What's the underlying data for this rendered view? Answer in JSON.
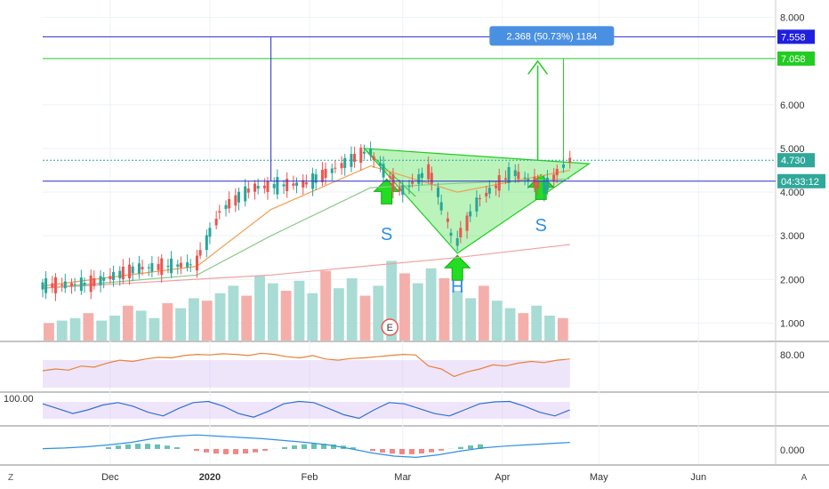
{
  "chart_data": [
    {
      "type": "candlestick",
      "x_ticks": [
        "Dec",
        "2020",
        "Feb",
        "Mar",
        "Apr",
        "May",
        "Jun"
      ],
      "y_ticks": [
        "1.000",
        "2.000",
        "3.000",
        "4.000",
        "5.000",
        "6.000",
        "8.000"
      ],
      "ylim": [
        0.6,
        8.4
      ],
      "price_path": [
        {
          "date": "2019-11-10",
          "price": 1.85
        },
        {
          "date": "2019-11-25",
          "price": 1.9
        },
        {
          "date": "2019-12-10",
          "price": 2.25
        },
        {
          "date": "2019-12-28",
          "price": 2.35
        },
        {
          "date": "2020-01-05",
          "price": 3.6
        },
        {
          "date": "2020-01-15",
          "price": 4.1
        },
        {
          "date": "2020-02-01",
          "price": 4.2
        },
        {
          "date": "2020-02-20",
          "price": 4.95
        },
        {
          "date": "2020-03-01",
          "price": 4.0
        },
        {
          "date": "2020-03-10",
          "price": 4.5
        },
        {
          "date": "2020-03-18",
          "price": 2.8
        },
        {
          "date": "2020-03-25",
          "price": 3.8
        },
        {
          "date": "2020-04-05",
          "price": 4.45
        },
        {
          "date": "2020-04-15",
          "price": 4.1
        },
        {
          "date": "2020-04-22",
          "price": 4.73
        }
      ],
      "moving_averages": [
        {
          "color": "#f0a050",
          "values": [
            [
              "2019-11-10",
              1.85
            ],
            [
              "2019-12-28",
              2.3
            ],
            [
              "2020-01-20",
              3.6
            ],
            [
              "2020-02-20",
              4.6
            ],
            [
              "2020-03-18",
              4.0
            ],
            [
              "2020-04-22",
              4.5
            ]
          ]
        },
        {
          "color": "#8bc98b",
          "values": [
            [
              "2019-11-10",
              1.8
            ],
            [
              "2019-12-28",
              2.1
            ],
            [
              "2020-01-20",
              3.0
            ],
            [
              "2020-02-20",
              4.1
            ],
            [
              "2020-03-18",
              4.2
            ],
            [
              "2020-04-22",
              4.3
            ]
          ]
        },
        {
          "color": "#f0a0a0",
          "values": [
            [
              "2019-11-10",
              1.8
            ],
            [
              "2020-01-20",
              2.1
            ],
            [
              "2020-03-18",
              2.5
            ],
            [
              "2020-04-22",
              2.8
            ]
          ]
        }
      ],
      "horizontal_lines": [
        {
          "price": 7.558,
          "color": "#2c2cd0"
        },
        {
          "price": 7.058,
          "color": "#22cc22"
        },
        {
          "price": 4.25,
          "color": "#2c2cd0"
        },
        {
          "price": 4.73,
          "color": "#2fa89a",
          "style": "dotted"
        }
      ],
      "price_tags": [
        {
          "label": "7.558",
          "color": "#1f1fe0"
        },
        {
          "label": "7.058",
          "color": "#22cc22"
        },
        {
          "label": "4.730",
          "color": "#2fa89a"
        },
        {
          "label": "04:33:12",
          "color": "#2fa89a"
        }
      ],
      "measure_label": "2.368 (50.73%) 1184",
      "pattern_labels": [
        "S",
        "H",
        "S"
      ],
      "earnings_marker": "E",
      "volume_values": [
        0.7,
        0.8,
        0.9,
        1.1,
        0.8,
        1.0,
        1.4,
        1.2,
        0.9,
        1.5,
        1.3,
        1.7,
        1.6,
        1.9,
        2.2,
        1.8,
        2.6,
        2.3,
        2.0,
        2.4,
        1.9,
        2.8,
        2.1,
        2.5,
        1.8,
        2.2,
        3.2,
        2.7,
        2.3,
        2.9,
        2.5,
        2.0,
        1.7,
        2.2,
        1.6,
        1.3,
        1.1,
        1.4,
        1.0,
        0.9
      ]
    },
    {
      "type": "line",
      "name": "RSI",
      "y_ticks": [
        "80.00"
      ],
      "values": [
        52,
        55,
        53,
        60,
        58,
        65,
        70,
        68,
        72,
        75,
        74,
        78,
        80,
        79,
        81,
        80,
        78,
        82,
        80,
        76,
        74,
        78,
        72,
        70,
        73,
        74,
        76,
        78,
        80,
        79,
        60,
        55,
        42,
        50,
        55,
        62,
        60,
        65,
        68,
        66,
        70,
        72
      ]
    },
    {
      "type": "line",
      "name": "Stochastic",
      "y_ticks": [
        "100.00"
      ],
      "values": [
        80,
        60,
        40,
        55,
        75,
        85,
        70,
        45,
        30,
        60,
        85,
        90,
        70,
        40,
        25,
        50,
        80,
        90,
        85,
        60,
        35,
        20,
        55,
        85,
        80,
        60,
        40,
        30,
        55,
        80,
        88,
        90,
        70,
        45,
        30,
        55
      ]
    },
    {
      "type": "line",
      "name": "MACD",
      "y_ticks": [
        "0.000"
      ],
      "values": [
        0.02,
        0.03,
        0.05,
        0.08,
        0.12,
        0.18,
        0.22,
        0.24,
        0.22,
        0.2,
        0.18,
        0.15,
        0.12,
        0.08,
        0.02,
        -0.05,
        -0.1,
        -0.12,
        -0.08,
        -0.02,
        0.03,
        0.06,
        0.08,
        0.1,
        0.12
      ]
    }
  ],
  "toolbar": {
    "left_button": "Z",
    "right_button": "A"
  }
}
